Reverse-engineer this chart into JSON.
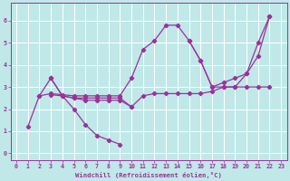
{
  "xlabel": "Windchill (Refroidissement éolien,°C)",
  "xlim": [
    -0.5,
    23.5
  ],
  "ylim": [
    -0.3,
    6.8
  ],
  "xticks": [
    0,
    1,
    2,
    3,
    4,
    5,
    6,
    7,
    8,
    9,
    10,
    11,
    12,
    13,
    14,
    15,
    16,
    17,
    18,
    19,
    20,
    21,
    22,
    23
  ],
  "yticks": [
    0,
    1,
    2,
    3,
    4,
    5,
    6
  ],
  "background_color": "#c0e8e8",
  "grid_color": "#ffffff",
  "line_color": "#993399",
  "traces": [
    {
      "x": [
        1,
        2,
        3,
        4,
        5,
        6,
        7,
        8,
        9
      ],
      "y": [
        1.2,
        2.6,
        3.4,
        2.6,
        2.0,
        1.3,
        0.8,
        0.6,
        0.4
      ]
    },
    {
      "x": [
        2,
        3,
        4,
        5,
        6,
        7,
        8,
        9,
        10,
        11,
        12,
        13,
        14,
        15,
        16,
        17,
        18,
        19,
        20,
        21,
        22
      ],
      "y": [
        2.6,
        2.7,
        2.65,
        2.6,
        2.6,
        2.6,
        2.6,
        2.6,
        3.4,
        4.7,
        5.1,
        5.8,
        5.8,
        5.1,
        4.2,
        3.0,
        3.0,
        3.0,
        3.6,
        5.0,
        6.2
      ]
    },
    {
      "x": [
        3,
        4,
        5,
        6,
        7,
        8,
        9,
        10,
        11,
        12,
        13,
        14,
        15,
        16,
        17,
        18,
        19,
        20,
        21,
        22
      ],
      "y": [
        3.4,
        2.6,
        2.5,
        2.4,
        2.4,
        2.4,
        2.4,
        2.1,
        2.6,
        2.7,
        2.7,
        2.7,
        2.7,
        2.7,
        2.8,
        3.0,
        3.0,
        3.0,
        3.0,
        3.0
      ]
    },
    {
      "x": [
        3,
        4,
        5,
        6,
        7,
        8,
        9,
        10
      ],
      "y": [
        2.65,
        2.6,
        2.5,
        2.5,
        2.5,
        2.5,
        2.5,
        2.1
      ]
    },
    {
      "x": [
        15,
        16,
        17,
        18,
        19,
        20,
        21,
        22
      ],
      "y": [
        5.1,
        4.2,
        3.0,
        3.2,
        3.4,
        3.6,
        4.4,
        6.2
      ]
    }
  ],
  "marker": "D",
  "markersize": 2.2,
  "linewidth": 0.9
}
